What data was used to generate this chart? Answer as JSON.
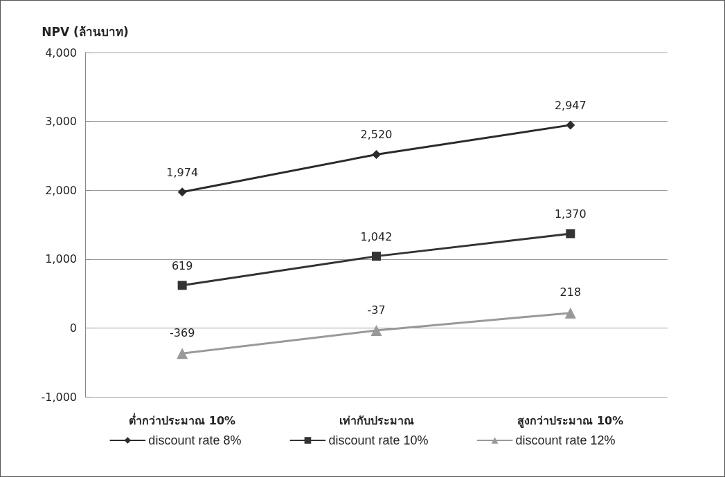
{
  "chart_data": {
    "type": "line",
    "ylabel": "NPV (ล้านบาท)",
    "categories": [
      "ต่ำกว่าประมาณ 10%",
      "เท่ากับประมาณ",
      "สูงกว่าประมาณ 10%"
    ],
    "series": [
      {
        "name": "discount rate 8%",
        "color": "#2b2b2b",
        "marker": "diamond",
        "values": [
          1974,
          2520,
          2947
        ],
        "value_labels": [
          "1,974",
          "2,520",
          "2,947"
        ]
      },
      {
        "name": "discount rate 10%",
        "color": "#333333",
        "marker": "square",
        "values": [
          619,
          1042,
          1370
        ],
        "value_labels": [
          "619",
          "1,042",
          "1,370"
        ]
      },
      {
        "name": "discount rate 12%",
        "color": "#999999",
        "marker": "triangle",
        "values": [
          -369,
          -37,
          218
        ],
        "value_labels": [
          "-369",
          "-37",
          "218"
        ]
      }
    ],
    "ylim": [
      -1000,
      4000
    ],
    "yticks": [
      {
        "value": -1000,
        "label": "-1,000"
      },
      0,
      {
        "value": 1000,
        "label": "1,000"
      },
      {
        "value": 2000,
        "label": "2,000"
      },
      {
        "value": 3000,
        "label": "3,000"
      },
      {
        "value": 4000,
        "label": "4,000"
      }
    ],
    "grid": "y",
    "legend": "bottom",
    "line_style": "solid"
  }
}
